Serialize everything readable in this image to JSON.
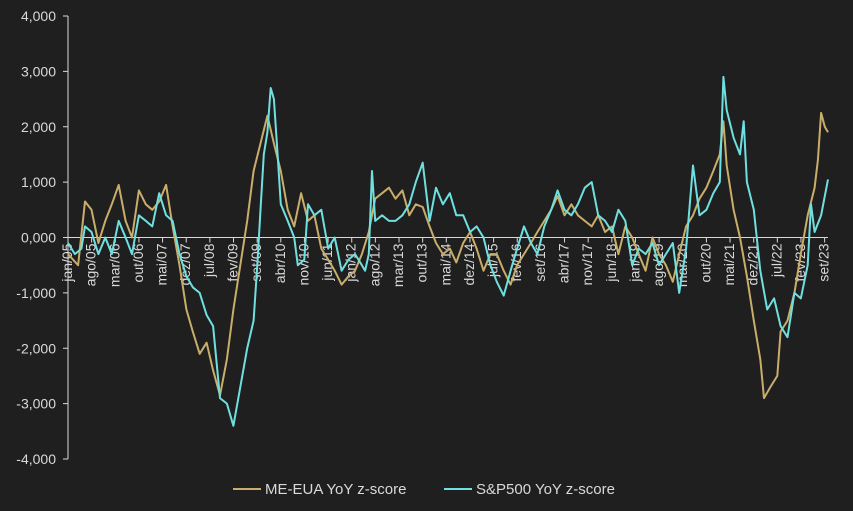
{
  "colors": {
    "background": "#1f1f1f",
    "axis": "#d9d9d9",
    "me_eua": "#c9ad6a",
    "sp500": "#6fe0e0"
  },
  "chart_data": {
    "type": "line",
    "ylim": [
      -4,
      4
    ],
    "y_ticks": [
      {
        "value": 4,
        "label": "4,000"
      },
      {
        "value": 3,
        "label": "3,000"
      },
      {
        "value": 2,
        "label": "2,000"
      },
      {
        "value": 1,
        "label": "1,000"
      },
      {
        "value": 0,
        "label": "0,000"
      },
      {
        "value": -1,
        "label": "-1,000"
      },
      {
        "value": -2,
        "label": "-2,000"
      },
      {
        "value": -3,
        "label": "-3,000"
      },
      {
        "value": -4,
        "label": "-4,000"
      }
    ],
    "x_range": [
      2005.0,
      2023.75
    ],
    "x_ticks": [
      {
        "value": 2005.0,
        "label": "jan/05"
      },
      {
        "value": 2005.583,
        "label": "ago/05"
      },
      {
        "value": 2006.167,
        "label": "mar/06"
      },
      {
        "value": 2006.75,
        "label": "out/06"
      },
      {
        "value": 2007.333,
        "label": "mai/07"
      },
      {
        "value": 2007.917,
        "label": "dez/07"
      },
      {
        "value": 2008.5,
        "label": "jul/08"
      },
      {
        "value": 2009.083,
        "label": "fev/09"
      },
      {
        "value": 2009.667,
        "label": "set/09"
      },
      {
        "value": 2010.25,
        "label": "abr/10"
      },
      {
        "value": 2010.833,
        "label": "nov/10"
      },
      {
        "value": 2011.417,
        "label": "jun/11"
      },
      {
        "value": 2012.0,
        "label": "jan/12"
      },
      {
        "value": 2012.583,
        "label": "ago/12"
      },
      {
        "value": 2013.167,
        "label": "mar/13"
      },
      {
        "value": 2013.75,
        "label": "out/13"
      },
      {
        "value": 2014.333,
        "label": "mai/14"
      },
      {
        "value": 2014.917,
        "label": "dez/14"
      },
      {
        "value": 2015.5,
        "label": "jul/15"
      },
      {
        "value": 2016.083,
        "label": "fev/16"
      },
      {
        "value": 2016.667,
        "label": "set/16"
      },
      {
        "value": 2017.25,
        "label": "abr/17"
      },
      {
        "value": 2017.833,
        "label": "nov/17"
      },
      {
        "value": 2018.417,
        "label": "jun/18"
      },
      {
        "value": 2019.0,
        "label": "jan/19"
      },
      {
        "value": 2019.583,
        "label": "ago/19"
      },
      {
        "value": 2020.167,
        "label": "mar/20"
      },
      {
        "value": 2020.75,
        "label": "out/20"
      },
      {
        "value": 2021.333,
        "label": "mai/21"
      },
      {
        "value": 2021.917,
        "label": "dez/21"
      },
      {
        "value": 2022.5,
        "label": "jul/22"
      },
      {
        "value": 2023.083,
        "label": "fev/23"
      },
      {
        "value": 2023.667,
        "label": "set/23"
      }
    ],
    "legend_position": "bottom-center",
    "grid": false,
    "series": [
      {
        "name": "ME-EUA YoY z-score",
        "color_key": "me_eua",
        "points": [
          [
            2005.0,
            -0.3
          ],
          [
            2005.25,
            -0.5
          ],
          [
            2005.42,
            0.65
          ],
          [
            2005.58,
            0.5
          ],
          [
            2005.75,
            -0.1
          ],
          [
            2005.92,
            0.3
          ],
          [
            2006.08,
            0.6
          ],
          [
            2006.25,
            0.95
          ],
          [
            2006.42,
            0.3
          ],
          [
            2006.58,
            0.0
          ],
          [
            2006.75,
            0.85
          ],
          [
            2006.92,
            0.6
          ],
          [
            2007.08,
            0.5
          ],
          [
            2007.25,
            0.65
          ],
          [
            2007.42,
            0.95
          ],
          [
            2007.58,
            0.2
          ],
          [
            2007.75,
            -0.5
          ],
          [
            2007.92,
            -1.3
          ],
          [
            2008.08,
            -1.7
          ],
          [
            2008.25,
            -2.1
          ],
          [
            2008.42,
            -1.9
          ],
          [
            2008.58,
            -2.4
          ],
          [
            2008.75,
            -2.85
          ],
          [
            2008.92,
            -2.2
          ],
          [
            2009.08,
            -1.3
          ],
          [
            2009.25,
            -0.5
          ],
          [
            2009.42,
            0.3
          ],
          [
            2009.58,
            1.2
          ],
          [
            2009.75,
            1.7
          ],
          [
            2009.92,
            2.2
          ],
          [
            2010.08,
            1.7
          ],
          [
            2010.25,
            1.2
          ],
          [
            2010.42,
            0.5
          ],
          [
            2010.58,
            0.2
          ],
          [
            2010.75,
            0.8
          ],
          [
            2010.92,
            0.3
          ],
          [
            2011.08,
            0.4
          ],
          [
            2011.25,
            -0.2
          ],
          [
            2011.42,
            -0.4
          ],
          [
            2011.58,
            -0.6
          ],
          [
            2011.75,
            -0.85
          ],
          [
            2011.92,
            -0.7
          ],
          [
            2012.08,
            -0.6
          ],
          [
            2012.25,
            -0.3
          ],
          [
            2012.42,
            0.1
          ],
          [
            2012.58,
            0.7
          ],
          [
            2012.75,
            0.8
          ],
          [
            2012.92,
            0.9
          ],
          [
            2013.08,
            0.7
          ],
          [
            2013.25,
            0.85
          ],
          [
            2013.42,
            0.4
          ],
          [
            2013.58,
            0.6
          ],
          [
            2013.75,
            0.55
          ],
          [
            2013.92,
            0.2
          ],
          [
            2014.08,
            -0.1
          ],
          [
            2014.25,
            -0.3
          ],
          [
            2014.42,
            -0.2
          ],
          [
            2014.58,
            -0.45
          ],
          [
            2014.75,
            -0.1
          ],
          [
            2014.92,
            0.1
          ],
          [
            2015.08,
            -0.2
          ],
          [
            2015.25,
            -0.6
          ],
          [
            2015.42,
            -0.3
          ],
          [
            2015.58,
            -0.3
          ],
          [
            2015.75,
            -0.6
          ],
          [
            2015.92,
            -0.85
          ],
          [
            2016.08,
            -0.5
          ],
          [
            2016.25,
            -0.3
          ],
          [
            2016.42,
            -0.1
          ],
          [
            2016.58,
            0.1
          ],
          [
            2016.75,
            0.3
          ],
          [
            2016.92,
            0.5
          ],
          [
            2017.08,
            0.75
          ],
          [
            2017.25,
            0.4
          ],
          [
            2017.42,
            0.6
          ],
          [
            2017.58,
            0.4
          ],
          [
            2017.75,
            0.3
          ],
          [
            2017.92,
            0.2
          ],
          [
            2018.08,
            0.4
          ],
          [
            2018.25,
            0.1
          ],
          [
            2018.42,
            0.2
          ],
          [
            2018.58,
            -0.3
          ],
          [
            2018.75,
            0.2
          ],
          [
            2018.92,
            0.0
          ],
          [
            2019.08,
            -0.3
          ],
          [
            2019.25,
            -0.6
          ],
          [
            2019.42,
            0.0
          ],
          [
            2019.58,
            -0.3
          ],
          [
            2019.75,
            -0.5
          ],
          [
            2019.92,
            -0.8
          ],
          [
            2020.08,
            -0.3
          ],
          [
            2020.25,
            0.2
          ],
          [
            2020.42,
            0.4
          ],
          [
            2020.58,
            0.7
          ],
          [
            2020.75,
            0.9
          ],
          [
            2020.92,
            1.2
          ],
          [
            2021.08,
            1.5
          ],
          [
            2021.17,
            2.1
          ],
          [
            2021.25,
            1.3
          ],
          [
            2021.42,
            0.5
          ],
          [
            2021.58,
            0.0
          ],
          [
            2021.75,
            -0.7
          ],
          [
            2021.92,
            -1.5
          ],
          [
            2022.08,
            -2.2
          ],
          [
            2022.17,
            -2.9
          ],
          [
            2022.33,
            -2.7
          ],
          [
            2022.5,
            -2.5
          ],
          [
            2022.58,
            -1.7
          ],
          [
            2022.75,
            -1.5
          ],
          [
            2022.92,
            -1.0
          ],
          [
            2023.08,
            -0.3
          ],
          [
            2023.25,
            0.4
          ],
          [
            2023.42,
            0.9
          ],
          [
            2023.5,
            1.4
          ],
          [
            2023.58,
            2.25
          ],
          [
            2023.67,
            2.0
          ],
          [
            2023.75,
            1.9
          ]
        ]
      },
      {
        "name": "S&P500 YoY z-score",
        "color_key": "sp500",
        "points": [
          [
            2005.0,
            -0.1
          ],
          [
            2005.17,
            -0.3
          ],
          [
            2005.33,
            -0.2
          ],
          [
            2005.42,
            0.2
          ],
          [
            2005.58,
            0.1
          ],
          [
            2005.75,
            -0.3
          ],
          [
            2005.92,
            0.0
          ],
          [
            2006.08,
            -0.3
          ],
          [
            2006.25,
            0.3
          ],
          [
            2006.42,
            0.0
          ],
          [
            2006.58,
            -0.3
          ],
          [
            2006.75,
            0.4
          ],
          [
            2006.92,
            0.3
          ],
          [
            2007.08,
            0.2
          ],
          [
            2007.25,
            0.8
          ],
          [
            2007.42,
            0.4
          ],
          [
            2007.58,
            0.3
          ],
          [
            2007.75,
            -0.3
          ],
          [
            2007.92,
            -0.7
          ],
          [
            2008.08,
            -0.9
          ],
          [
            2008.25,
            -1.0
          ],
          [
            2008.42,
            -1.4
          ],
          [
            2008.58,
            -1.6
          ],
          [
            2008.75,
            -2.9
          ],
          [
            2008.92,
            -3.0
          ],
          [
            2009.08,
            -3.4
          ],
          [
            2009.25,
            -2.7
          ],
          [
            2009.42,
            -2.0
          ],
          [
            2009.58,
            -1.5
          ],
          [
            2009.67,
            -0.5
          ],
          [
            2009.75,
            0.5
          ],
          [
            2009.83,
            1.5
          ],
          [
            2009.92,
            1.9
          ],
          [
            2010.0,
            2.7
          ],
          [
            2010.08,
            2.5
          ],
          [
            2010.17,
            1.5
          ],
          [
            2010.25,
            0.6
          ],
          [
            2010.42,
            0.3
          ],
          [
            2010.58,
            0.0
          ],
          [
            2010.67,
            -0.5
          ],
          [
            2010.83,
            -0.4
          ],
          [
            2010.92,
            0.6
          ],
          [
            2011.08,
            0.4
          ],
          [
            2011.25,
            0.5
          ],
          [
            2011.42,
            -0.2
          ],
          [
            2011.58,
            0.0
          ],
          [
            2011.75,
            -0.6
          ],
          [
            2011.92,
            -0.4
          ],
          [
            2012.08,
            -0.3
          ],
          [
            2012.25,
            -0.5
          ],
          [
            2012.33,
            -0.6
          ],
          [
            2012.42,
            -0.3
          ],
          [
            2012.5,
            1.2
          ],
          [
            2012.58,
            0.3
          ],
          [
            2012.75,
            0.4
          ],
          [
            2012.92,
            0.3
          ],
          [
            2013.08,
            0.3
          ],
          [
            2013.25,
            0.4
          ],
          [
            2013.42,
            0.6
          ],
          [
            2013.58,
            1.0
          ],
          [
            2013.75,
            1.35
          ],
          [
            2013.92,
            0.3
          ],
          [
            2014.08,
            0.9
          ],
          [
            2014.25,
            0.6
          ],
          [
            2014.42,
            0.8
          ],
          [
            2014.58,
            0.4
          ],
          [
            2014.75,
            0.4
          ],
          [
            2014.92,
            0.1
          ],
          [
            2015.08,
            0.2
          ],
          [
            2015.25,
            0.0
          ],
          [
            2015.42,
            -0.5
          ],
          [
            2015.58,
            -0.8
          ],
          [
            2015.75,
            -1.05
          ],
          [
            2015.92,
            -0.6
          ],
          [
            2016.08,
            -0.2
          ],
          [
            2016.25,
            0.2
          ],
          [
            2016.42,
            -0.1
          ],
          [
            2016.58,
            -0.3
          ],
          [
            2016.75,
            0.2
          ],
          [
            2016.92,
            0.5
          ],
          [
            2017.08,
            0.85
          ],
          [
            2017.25,
            0.5
          ],
          [
            2017.42,
            0.4
          ],
          [
            2017.58,
            0.6
          ],
          [
            2017.75,
            0.9
          ],
          [
            2017.92,
            1.0
          ],
          [
            2018.08,
            0.4
          ],
          [
            2018.25,
            0.3
          ],
          [
            2018.42,
            0.1
          ],
          [
            2018.58,
            0.5
          ],
          [
            2018.75,
            0.3
          ],
          [
            2018.92,
            -0.5
          ],
          [
            2019.08,
            -0.2
          ],
          [
            2019.25,
            -0.3
          ],
          [
            2019.42,
            -0.1
          ],
          [
            2019.58,
            -0.5
          ],
          [
            2019.75,
            -0.3
          ],
          [
            2019.92,
            -0.1
          ],
          [
            2020.08,
            -1.0
          ],
          [
            2020.25,
            -0.2
          ],
          [
            2020.42,
            1.3
          ],
          [
            2020.58,
            0.4
          ],
          [
            2020.75,
            0.5
          ],
          [
            2020.92,
            0.8
          ],
          [
            2021.08,
            1.0
          ],
          [
            2021.17,
            2.9
          ],
          [
            2021.25,
            2.3
          ],
          [
            2021.42,
            1.8
          ],
          [
            2021.58,
            1.5
          ],
          [
            2021.67,
            2.1
          ],
          [
            2021.75,
            1.0
          ],
          [
            2021.92,
            0.5
          ],
          [
            2022.08,
            -0.6
          ],
          [
            2022.25,
            -1.3
          ],
          [
            2022.42,
            -1.1
          ],
          [
            2022.58,
            -1.6
          ],
          [
            2022.75,
            -1.8
          ],
          [
            2022.92,
            -1.0
          ],
          [
            2023.08,
            -1.1
          ],
          [
            2023.25,
            -0.5
          ],
          [
            2023.33,
            0.6
          ],
          [
            2023.42,
            0.1
          ],
          [
            2023.58,
            0.4
          ],
          [
            2023.75,
            1.05
          ]
        ]
      }
    ]
  }
}
